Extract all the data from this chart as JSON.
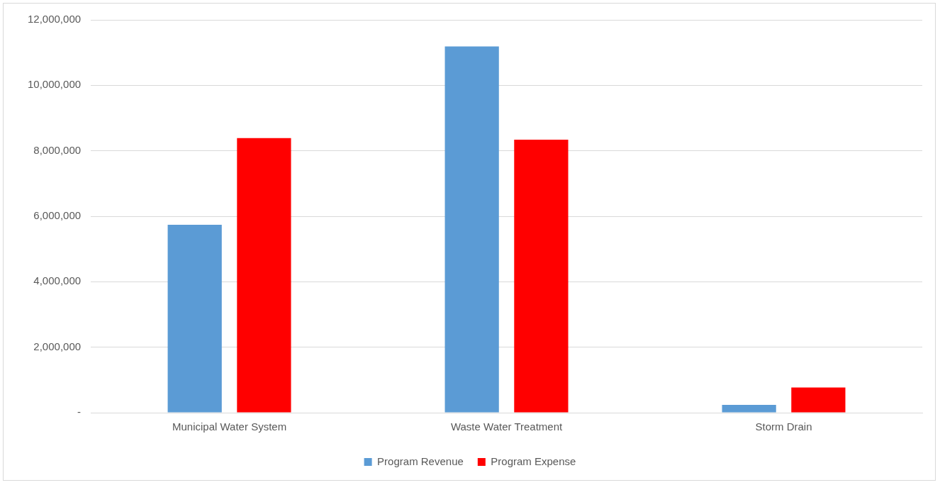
{
  "chart_data": {
    "type": "bar",
    "categories": [
      "Municipal Water System",
      "Waste Water Treatment",
      "Storm Drain"
    ],
    "series": [
      {
        "name": "Program Revenue",
        "color": "#5b9bd5",
        "values": [
          5740000,
          11190000,
          240000
        ]
      },
      {
        "name": "Program Expense",
        "color": "#ff0000",
        "values": [
          8390000,
          8340000,
          770000
        ]
      }
    ],
    "ylim": [
      0,
      12000000
    ],
    "yticks": [
      {
        "value": 0,
        "label": "-"
      },
      {
        "value": 2000000,
        "label": "2,000,000"
      },
      {
        "value": 4000000,
        "label": "4,000,000"
      },
      {
        "value": 6000000,
        "label": "6,000,000"
      },
      {
        "value": 8000000,
        "label": "8,000,000"
      },
      {
        "value": 10000000,
        "label": "10,000,000"
      },
      {
        "value": 12000000,
        "label": "12,000,000"
      }
    ],
    "grid": "y",
    "legend": "bottom"
  }
}
